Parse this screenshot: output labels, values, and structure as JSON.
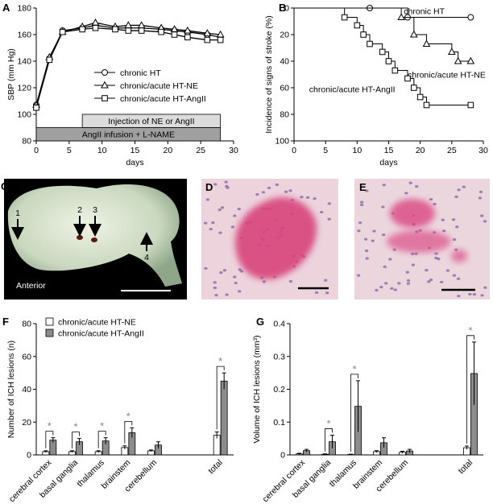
{
  "chart_data": [
    {
      "type": "line",
      "panel_label": "A",
      "xlabel": "days",
      "ylabel": "SBP (mm Hg)",
      "x": [
        0,
        2,
        4,
        7,
        9,
        12,
        14,
        16,
        19,
        21,
        23,
        26,
        28
      ],
      "xlim": [
        0,
        30
      ],
      "xticks": [
        0,
        5,
        10,
        15,
        20,
        25,
        30
      ],
      "ylim": [
        80,
        180
      ],
      "yticks": [
        80,
        100,
        120,
        140,
        160,
        180
      ],
      "legend": "center right",
      "series": [
        {
          "name": "chronic HT",
          "color": "#000000",
          "marker": "circle",
          "values": [
            107,
            142,
            163,
            165,
            167,
            165,
            165,
            165,
            164,
            163,
            162,
            160,
            158
          ]
        },
        {
          "name": "chronic/acute HT-NE",
          "color": "#000000",
          "marker": "triangle",
          "values": [
            107,
            143,
            162,
            166,
            169,
            166,
            167,
            167,
            165,
            164,
            163,
            161,
            160
          ]
        },
        {
          "name": "chronic/acute HT-AngII",
          "color": "#000000",
          "marker": "square",
          "values": [
            105,
            141,
            162,
            164,
            165,
            164,
            163,
            163,
            162,
            160,
            158,
            156,
            156
          ]
        }
      ],
      "annotations": [
        {
          "text": "Injection of NE or AngII",
          "x_range": [
            7,
            28
          ],
          "color": "#dcdcdc"
        },
        {
          "text": "AngII infusion + L-NAME",
          "x_range": [
            0,
            28
          ],
          "color": "#a0a0a0"
        }
      ]
    },
    {
      "type": "line",
      "step": true,
      "y_inverted": true,
      "panel_label": "B",
      "xlabel": "days",
      "ylabel": "Incidence of signs of stroke (%)",
      "xlim": [
        0,
        30
      ],
      "xticks": [
        0,
        5,
        10,
        15,
        20,
        25,
        30
      ],
      "ylim": [
        0,
        100
      ],
      "yticks": [
        0,
        20,
        40,
        60,
        80,
        100
      ],
      "legend": "direct",
      "series": [
        {
          "name": "chronic HT",
          "color": "#000000",
          "marker": "circle",
          "x": [
            0,
            12,
            18,
            28
          ],
          "values": [
            0,
            0,
            7,
            7
          ]
        },
        {
          "name": "chronic/acute HT-NE",
          "color": "#000000",
          "marker": "triangle",
          "x": [
            0,
            17,
            19,
            21,
            25,
            26,
            28
          ],
          "values": [
            0,
            7,
            20,
            27,
            33,
            40,
            40
          ]
        },
        {
          "name": "chronic/acute HT-AngII",
          "color": "#000000",
          "marker": "square",
          "x": [
            0,
            8,
            10,
            11,
            12,
            14,
            15,
            16,
            18,
            19,
            20,
            21,
            28
          ],
          "values": [
            0,
            7,
            13,
            20,
            27,
            33,
            40,
            47,
            53,
            60,
            67,
            73,
            73
          ]
        }
      ]
    },
    {
      "type": "bar",
      "panel_label": "F",
      "ylabel": "Number of ICH lesions (n)",
      "categories": [
        "cerebral cortex",
        "basal ganglia",
        "thalamus",
        "brainstem",
        "cerebellum",
        "total"
      ],
      "ylim": [
        0,
        80
      ],
      "yticks": [
        0,
        20,
        40,
        60,
        80
      ],
      "legend": "upper left",
      "significant": [
        true,
        true,
        true,
        true,
        false,
        true
      ],
      "significance_label": "*",
      "series": [
        {
          "name": "chronic/acute HT-NE",
          "color": "#ffffff",
          "values": [
            2,
            2,
            2,
            4.5,
            2.5,
            12
          ],
          "errors": [
            0.5,
            0.5,
            0.5,
            1,
            0.5,
            2
          ]
        },
        {
          "name": "chronic/acute HT-AngII",
          "color": "#8c8c8c",
          "values": [
            9,
            8,
            8.5,
            13.5,
            6,
            45
          ],
          "errors": [
            1.5,
            2,
            2,
            3,
            2,
            5
          ]
        }
      ]
    },
    {
      "type": "bar",
      "panel_label": "G",
      "ylabel": "Volume of ICH lesions (mm³)",
      "categories": [
        "cerebral cortex",
        "basal ganglia",
        "thalamus",
        "brainstem",
        "cerebellum",
        "total"
      ],
      "ylim": [
        0,
        0.4
      ],
      "yticks": [
        0,
        0.1,
        0.2,
        0.3,
        0.4
      ],
      "significant": [
        false,
        true,
        true,
        false,
        false,
        true
      ],
      "significance_label": "*",
      "series": [
        {
          "name": "chronic/acute HT-NE",
          "color": "#ffffff",
          "values": [
            0.003,
            0.002,
            0.001,
            0.01,
            0.008,
            0.022
          ],
          "errors": [
            0.002,
            0.001,
            0.001,
            0.003,
            0.003,
            0.005
          ]
        },
        {
          "name": "chronic/acute HT-AngII",
          "color": "#8c8c8c",
          "values": [
            0.013,
            0.04,
            0.148,
            0.037,
            0.012,
            0.248
          ],
          "errors": [
            0.004,
            0.02,
            0.078,
            0.015,
            0.005,
            0.096
          ]
        }
      ]
    }
  ],
  "images": [
    {
      "panel_label": "C",
      "caption": "Anterior",
      "markers": [
        "1",
        "2",
        "3",
        "4"
      ]
    },
    {
      "panel_label": "D"
    },
    {
      "panel_label": "E"
    }
  ]
}
